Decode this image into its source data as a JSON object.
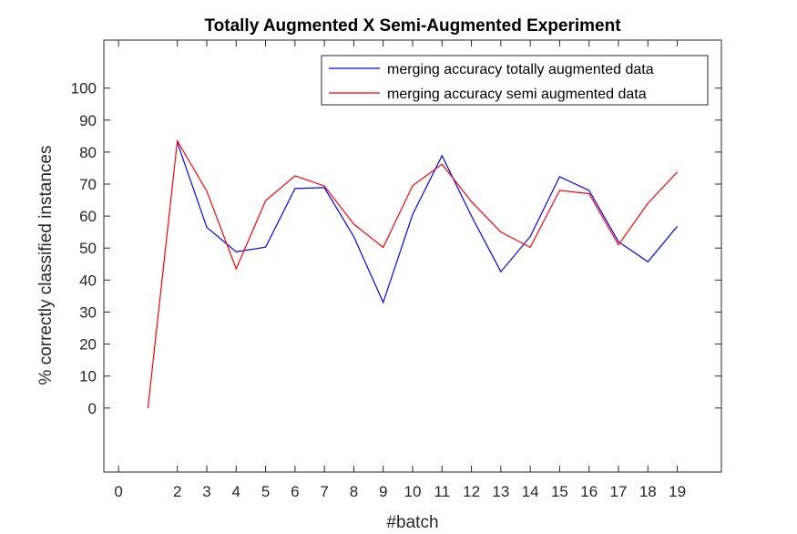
{
  "chart_data": {
    "type": "line",
    "title": "Totally Augmented X Semi-Augmented Experiment",
    "xlabel": "#batch",
    "ylabel": "% correctly classified instances",
    "xlim": [
      -0.5,
      20.5
    ],
    "ylim": [
      -20,
      115
    ],
    "x_ticks": [
      0,
      2,
      3,
      4,
      5,
      6,
      7,
      8,
      9,
      10,
      11,
      12,
      13,
      14,
      15,
      16,
      17,
      18,
      19
    ],
    "y_ticks": [
      0,
      10,
      20,
      30,
      40,
      50,
      60,
      70,
      80,
      90,
      100
    ],
    "grid": false,
    "legend_position": "top-right",
    "series": [
      {
        "name": "merging accuracy totally augmented data",
        "color": "#0000ff",
        "x": [
          2,
          3,
          4,
          5,
          6,
          7,
          8,
          9,
          10,
          11,
          12,
          13,
          14,
          15,
          16,
          17,
          18,
          19
        ],
        "values": [
          83,
          56.5,
          48.8,
          50.3,
          68.6,
          68.9,
          53.6,
          33,
          60.5,
          78.9,
          60,
          42.6,
          53.6,
          72.3,
          68,
          52,
          45.7,
          56.8
        ]
      },
      {
        "name": "merging accuracy semi augmented data",
        "color": "#ff0000",
        "x": [
          1,
          2,
          3,
          4,
          5,
          6,
          7,
          8,
          9,
          10,
          11,
          12,
          13,
          14,
          15,
          16,
          17,
          18,
          19
        ],
        "values": [
          0,
          83.5,
          67.8,
          43.5,
          64.8,
          72.6,
          69.4,
          57.5,
          50.2,
          69.5,
          76.2,
          64.5,
          55,
          50.2,
          68,
          67,
          51,
          64,
          73.8
        ]
      }
    ]
  }
}
